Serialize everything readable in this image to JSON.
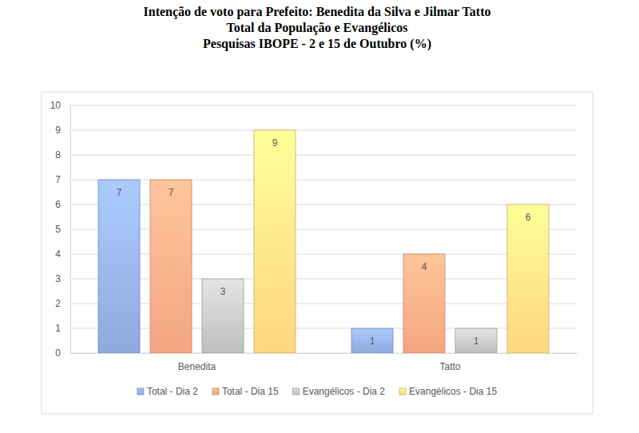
{
  "chart_data": {
    "type": "bar",
    "title": "Intenção de voto para Prefeito: Benedita da Silva e Jilmar Tatto\nTotal da População e Evangélicos\nPesquisas IBOPE - 2 e 15 de Outubro (%)",
    "categories": [
      "Benedita",
      "Tatto"
    ],
    "series": [
      {
        "name": "Total - Dia 2",
        "color": "#8faadc",
        "values": [
          7,
          1
        ]
      },
      {
        "name": "Total - Dia 15",
        "color": "#f4a582",
        "values": [
          7,
          4
        ]
      },
      {
        "name": "Evangélicos - Dia 2",
        "color": "#bfbfbf",
        "values": [
          3,
          1
        ]
      },
      {
        "name": "Evangélicos - Dia 15",
        "color": "#ffd580",
        "values": [
          9,
          6
        ]
      }
    ],
    "ylim": [
      0,
      10
    ],
    "yticks": [
      0,
      1,
      2,
      3,
      4,
      5,
      6,
      7,
      8,
      9,
      10
    ],
    "grid": true,
    "data_labels": true,
    "legend": "bottom"
  }
}
